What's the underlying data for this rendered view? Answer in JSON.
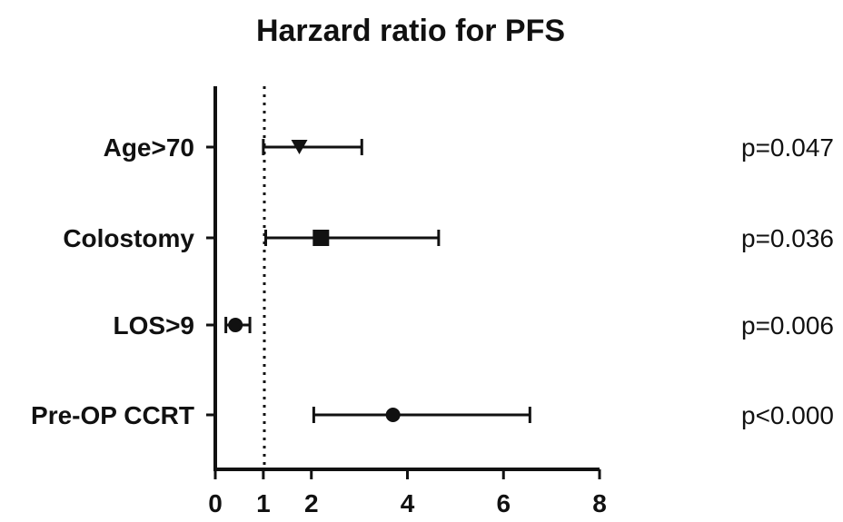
{
  "chart_data": {
    "type": "forest",
    "title": "Harzard ratio for PFS",
    "xlabel": "",
    "ylabel": "",
    "xlim": [
      0,
      8
    ],
    "x_ticks": [
      "0",
      "1",
      "2",
      "4",
      "6",
      "8"
    ],
    "reference_line": 1,
    "series": [
      {
        "label": "Age>70",
        "estimate": 1.75,
        "ci_low": 1.0,
        "ci_high": 3.05,
        "marker": "triangle-down",
        "p": "p=0.047"
      },
      {
        "label": "Colostomy",
        "estimate": 2.2,
        "ci_low": 1.05,
        "ci_high": 4.65,
        "marker": "square",
        "p": "p=0.036"
      },
      {
        "label": "LOS>9",
        "estimate": 0.42,
        "ci_low": 0.22,
        "ci_high": 0.72,
        "marker": "circle",
        "p": "p=0.006"
      },
      {
        "label": "Pre-OP CCRT",
        "estimate": 3.7,
        "ci_low": 2.05,
        "ci_high": 6.55,
        "marker": "circle",
        "p": "p<0.000"
      }
    ],
    "grid": false,
    "colors": {
      "ink": "#111111"
    }
  }
}
